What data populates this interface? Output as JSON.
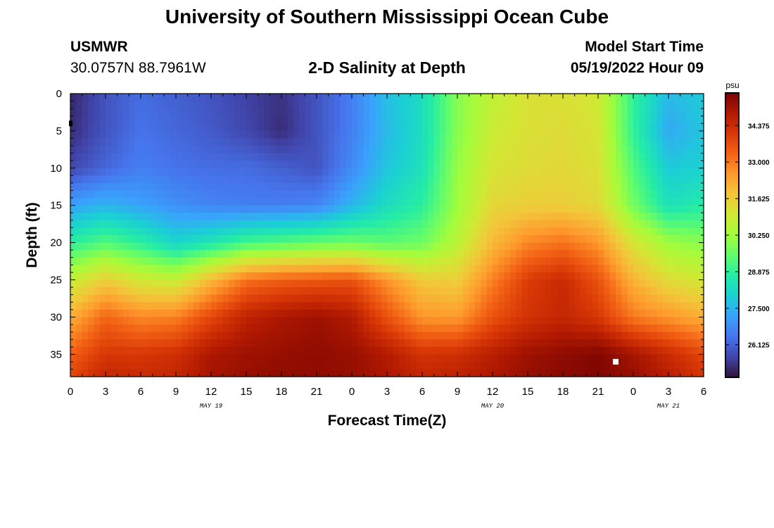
{
  "header": {
    "title": "University of Southern Mississippi Ocean Cube",
    "station": "USMWR",
    "coords": "30.0757N  88.7961W",
    "chart_title": "2-D Salinity at Depth",
    "model_start_label": "Model Start Time",
    "model_start_value": "05/19/2022 Hour 09"
  },
  "footer": {
    "title": "University of Southern Mississippi Ocean Cube"
  },
  "colors": {
    "background": "#ffffff",
    "axis": "#000000",
    "marker": "#ffffff"
  },
  "chart_data": {
    "type": "heatmap",
    "title": "2-D Salinity at Depth",
    "xlabel": "Forecast Time(Z)",
    "ylabel": "Depth (ft)",
    "x_range_hours": [
      0,
      54
    ],
    "y_range_ft": [
      0,
      38
    ],
    "x_ticks": [
      "0",
      "3",
      "6",
      "9",
      "12",
      "15",
      "18",
      "21",
      "0",
      "3",
      "6",
      "9",
      "12",
      "15",
      "18",
      "21",
      "0",
      "3",
      "6"
    ],
    "date_labels": [
      {
        "hour": 12,
        "label": "MAY 19"
      },
      {
        "hour": 36,
        "label": "MAY 20"
      },
      {
        "hour": 51,
        "label": "MAY 21"
      }
    ],
    "y_ticks": [
      0,
      5,
      10,
      15,
      20,
      25,
      30,
      35
    ],
    "colorbar": {
      "unit": "psu",
      "min": 24.9,
      "max": 35.6,
      "ticks": [
        "34.375",
        "33.000",
        "31.625",
        "30.250",
        "28.875",
        "27.500",
        "26.125"
      ],
      "tick_values": [
        34.375,
        33.0,
        31.625,
        30.25,
        28.875,
        27.5,
        26.125
      ],
      "palette": [
        "#30123b",
        "#4145ab",
        "#4675ed",
        "#39a2fc",
        "#1bcfd4",
        "#24eca6",
        "#61fc6c",
        "#a4fc3b",
        "#d1e834",
        "#f3c63a",
        "#fe9b2d",
        "#f36315",
        "#d93806",
        "#b11901",
        "#7a0402"
      ]
    },
    "hours": [
      0,
      3,
      6,
      9,
      12,
      15,
      18,
      21,
      24,
      27,
      30,
      33,
      36,
      39,
      42,
      45,
      48,
      51,
      54
    ],
    "depths_ft": [
      0,
      5,
      10,
      15,
      20,
      25,
      30,
      35,
      38
    ],
    "salinity_psu": [
      [
        25.2,
        25.9,
        26.3,
        26.1,
        25.9,
        25.6,
        25.4,
        25.9,
        26.6,
        27.7,
        28.3,
        29.9,
        30.7,
        31.2,
        31.2,
        31.0,
        28.9,
        27.6,
        27.9
      ],
      [
        25.3,
        25.9,
        26.4,
        26.2,
        26.0,
        25.7,
        25.3,
        25.9,
        26.6,
        27.6,
        28.3,
        29.9,
        30.9,
        31.2,
        31.3,
        31.1,
        28.9,
        27.3,
        27.8
      ],
      [
        25.7,
        26.2,
        26.6,
        26.4,
        26.3,
        26.3,
        26.1,
        25.9,
        26.8,
        27.8,
        28.4,
        30.1,
        31.1,
        31.3,
        31.4,
        31.2,
        29.3,
        27.9,
        28.0
      ],
      [
        27.2,
        27.5,
        27.2,
        26.9,
        26.7,
        26.6,
        26.6,
        26.7,
        27.5,
        28.3,
        28.8,
        30.2,
        31.4,
        31.6,
        31.6,
        31.4,
        29.7,
        28.4,
        28.7
      ],
      [
        28.8,
        29.3,
        28.8,
        28.1,
        28.5,
        29.1,
        29.3,
        29.5,
        29.6,
        29.4,
        29.6,
        30.6,
        32.0,
        32.8,
        33.1,
        32.6,
        31.1,
        30.2,
        29.9
      ],
      [
        30.8,
        31.6,
        31.0,
        30.8,
        32.0,
        33.1,
        33.4,
        33.5,
        33.6,
        32.6,
        31.7,
        31.6,
        32.9,
        34.0,
        34.4,
        33.6,
        32.1,
        31.3,
        31.0
      ],
      [
        32.2,
        33.3,
        32.8,
        32.9,
        33.8,
        34.6,
        34.9,
        35.1,
        34.8,
        33.6,
        32.6,
        32.5,
        33.6,
        34.2,
        34.5,
        34.1,
        33.0,
        32.6,
        32.2
      ],
      [
        33.4,
        34.1,
        34.1,
        34.3,
        34.9,
        35.1,
        35.2,
        35.3,
        35.2,
        34.8,
        34.2,
        34.3,
        34.7,
        35.1,
        35.3,
        35.5,
        35.0,
        34.4,
        33.8
      ],
      [
        33.8,
        34.5,
        34.4,
        34.5,
        35.0,
        35.2,
        35.3,
        35.3,
        35.2,
        34.9,
        34.5,
        34.6,
        34.9,
        35.2,
        35.4,
        35.5,
        35.2,
        34.7,
        34.2
      ]
    ],
    "markers": [
      {
        "hour": 46.5,
        "depth_ft": 36,
        "shape": "square"
      }
    ]
  }
}
